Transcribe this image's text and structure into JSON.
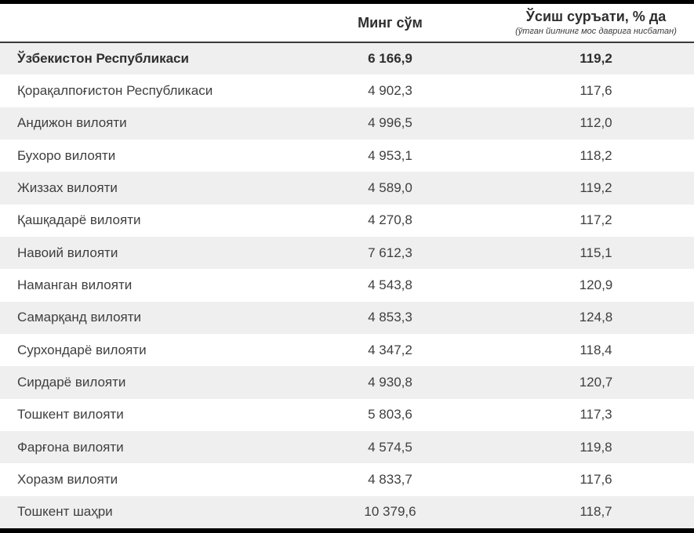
{
  "colors": {
    "stripe": "#efefef",
    "text": "#3f3f3f",
    "header_text": "#2e2e2e",
    "top_bottom_rule": "#000000",
    "header_divider": "#3a3a3a"
  },
  "table": {
    "header": {
      "region_label": "",
      "amount_label": "Минг сўм",
      "growth_label": "Ўсиш суръати, % да",
      "growth_sublabel": "(ўтган йилнинг мос даврига нисбатан)"
    },
    "rows": [
      {
        "name": "Ўзбекистон Республикаси",
        "value": "6 166,9",
        "growth": "119,2",
        "bold": true
      },
      {
        "name": "Қорақалпоғистон Республикаси",
        "value": "4 902,3",
        "growth": "117,6",
        "bold": false
      },
      {
        "name": "Андижон вилояти",
        "value": "4 996,5",
        "growth": "112,0",
        "bold": false
      },
      {
        "name": "Бухоро вилояти",
        "value": "4 953,1",
        "growth": "118,2",
        "bold": false
      },
      {
        "name": "Жиззах вилояти",
        "value": "4 589,0",
        "growth": "119,2",
        "bold": false
      },
      {
        "name": "Қашқадарё вилояти",
        "value": "4 270,8",
        "growth": "117,2",
        "bold": false
      },
      {
        "name": "Навоий вилояти",
        "value": "7 612,3",
        "growth": "115,1",
        "bold": false
      },
      {
        "name": "Наманган вилояти",
        "value": "4 543,8",
        "growth": "120,9",
        "bold": false
      },
      {
        "name": "Самарқанд вилояти",
        "value": "4 853,3",
        "growth": "124,8",
        "bold": false
      },
      {
        "name": "Сурхондарё вилояти",
        "value": "4 347,2",
        "growth": "118,4",
        "bold": false
      },
      {
        "name": "Сирдарё вилояти",
        "value": "4 930,8",
        "growth": "120,7",
        "bold": false
      },
      {
        "name": "Тошкент вилояти",
        "value": "5 803,6",
        "growth": "117,3",
        "bold": false
      },
      {
        "name": "Фарғона вилояти",
        "value": "4 574,5",
        "growth": "119,8",
        "bold": false
      },
      {
        "name": "Хоразм вилояти",
        "value": "4 833,7",
        "growth": "117,6",
        "bold": false
      },
      {
        "name": "Тошкент шаҳри",
        "value": "10 379,6",
        "growth": "118,7",
        "bold": false
      }
    ]
  },
  "chart_data": {
    "type": "table",
    "columns": [
      "",
      "Минг сўм",
      "Ўсиш суръати, % да (ўтган йилнинг мос даврига нисбатан)"
    ],
    "rows": [
      [
        "Ўзбекистон Республикаси",
        "6 166,9",
        "119,2"
      ],
      [
        "Қорақалпоғистон Республикаси",
        "4 902,3",
        "117,6"
      ],
      [
        "Андижон вилояти",
        "4 996,5",
        "112,0"
      ],
      [
        "Бухоро вилояти",
        "4 953,1",
        "118,2"
      ],
      [
        "Жиззах вилояти",
        "4 589,0",
        "119,2"
      ],
      [
        "Қашқадарё вилояти",
        "4 270,8",
        "117,2"
      ],
      [
        "Навоий вилояти",
        "7 612,3",
        "115,1"
      ],
      [
        "Наманган вилояти",
        "4 543,8",
        "120,9"
      ],
      [
        "Самарқанд вилояти",
        "4 853,3",
        "124,8"
      ],
      [
        "Сурхондарё вилояти",
        "4 347,2",
        "118,4"
      ],
      [
        "Сирдарё вилояти",
        "4 930,8",
        "120,7"
      ],
      [
        "Тошкент вилояти",
        "5 803,6",
        "117,3"
      ],
      [
        "Фарғона вилояти",
        "4 574,5",
        "119,8"
      ],
      [
        "Хоразм вилояти",
        "4 833,7",
        "117,6"
      ],
      [
        "Тошкент шаҳри",
        "10 379,6",
        "118,7"
      ]
    ],
    "values_numeric": {
      "amount_thousand_sum": [
        6166.9,
        4902.3,
        4996.5,
        4953.1,
        4589.0,
        4270.8,
        7612.3,
        4543.8,
        4853.3,
        4347.2,
        4930.8,
        5803.6,
        4574.5,
        4833.7,
        10379.6
      ],
      "growth_percent": [
        119.2,
        117.6,
        112.0,
        118.2,
        119.2,
        117.2,
        115.1,
        120.9,
        124.8,
        118.4,
        120.7,
        117.3,
        119.8,
        117.6,
        118.7
      ]
    },
    "layout": {
      "stripe_rows": "odd rows shaded #efefef, first data row bold",
      "grid": "off",
      "thick_black_rule_top_and_bottom": true
    }
  }
}
